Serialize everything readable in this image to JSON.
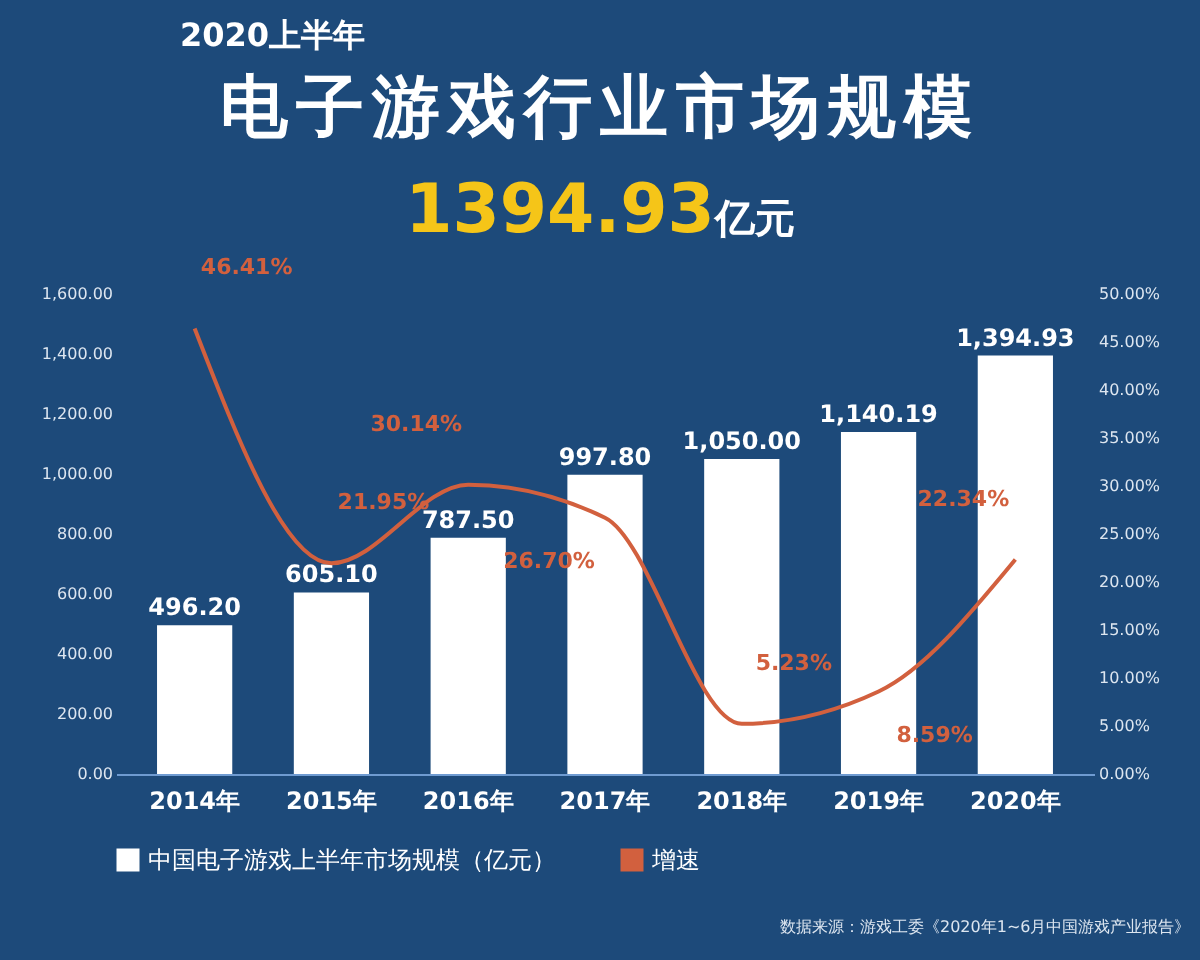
{
  "chart_data": {
    "type": "bar",
    "subtitle": "2020上半年",
    "title": "电子游戏行业市场规模",
    "annotations": [
      "1394.93亿元",
      "数据来源：游戏工委《2020年1~6月中国游戏产业报告》"
    ],
    "categories": [
      "2014年",
      "2015年",
      "2016年",
      "2017年",
      "2018年",
      "2019年",
      "2020年"
    ],
    "series": [
      {
        "name": "中国电子游戏上半年市场规模（亿元）",
        "color": "#ffffff",
        "values": [
          496.2,
          605.1,
          787.5,
          997.8,
          1050.0,
          1140.19,
          1394.93
        ],
        "value_labels": [
          "496.20",
          "605.10",
          "787.50",
          "997.80",
          "1,050.00",
          "1,140.19",
          "1,394.93"
        ]
      },
      {
        "name": "增速",
        "type": "line",
        "axis": "y2",
        "color": "#d2603e",
        "values": [
          46.41,
          21.95,
          30.14,
          26.7,
          5.23,
          8.59,
          22.34
        ],
        "value_labels": [
          "46.41%",
          "21.95%",
          "30.14%",
          "26.70%",
          "5.23%",
          "8.59%",
          "22.34%"
        ]
      }
    ],
    "ylim": [
      0,
      1600
    ],
    "yticks": [
      {
        "value": 0,
        "label": "0.00"
      },
      {
        "value": 200,
        "label": "200.00"
      },
      {
        "value": 400,
        "label": "400.00"
      },
      {
        "value": 600,
        "label": "600.00"
      },
      {
        "value": 800,
        "label": "800.00"
      },
      {
        "value": 1000,
        "label": "1,000.00"
      },
      {
        "value": 1200,
        "label": "1,200.00"
      },
      {
        "value": 1400,
        "label": "1,400.00"
      },
      {
        "value": 1600,
        "label": "1,600.00"
      }
    ],
    "y2lim": [
      0,
      50
    ],
    "y2ticks": [
      {
        "value": 0,
        "label": "0.00%"
      },
      {
        "value": 5,
        "label": "5.00%"
      },
      {
        "value": 10,
        "label": "10.00%"
      },
      {
        "value": 15,
        "label": "15.00%"
      },
      {
        "value": 20,
        "label": "20.00%"
      },
      {
        "value": 25,
        "label": "25.00%"
      },
      {
        "value": 30,
        "label": "30.00%"
      },
      {
        "value": 35,
        "label": "35.00%"
      },
      {
        "value": 40,
        "label": "40.00%"
      },
      {
        "value": 45,
        "label": "45.00%"
      },
      {
        "value": 50,
        "label": "50.00%"
      }
    ],
    "legend": "bottom"
  }
}
